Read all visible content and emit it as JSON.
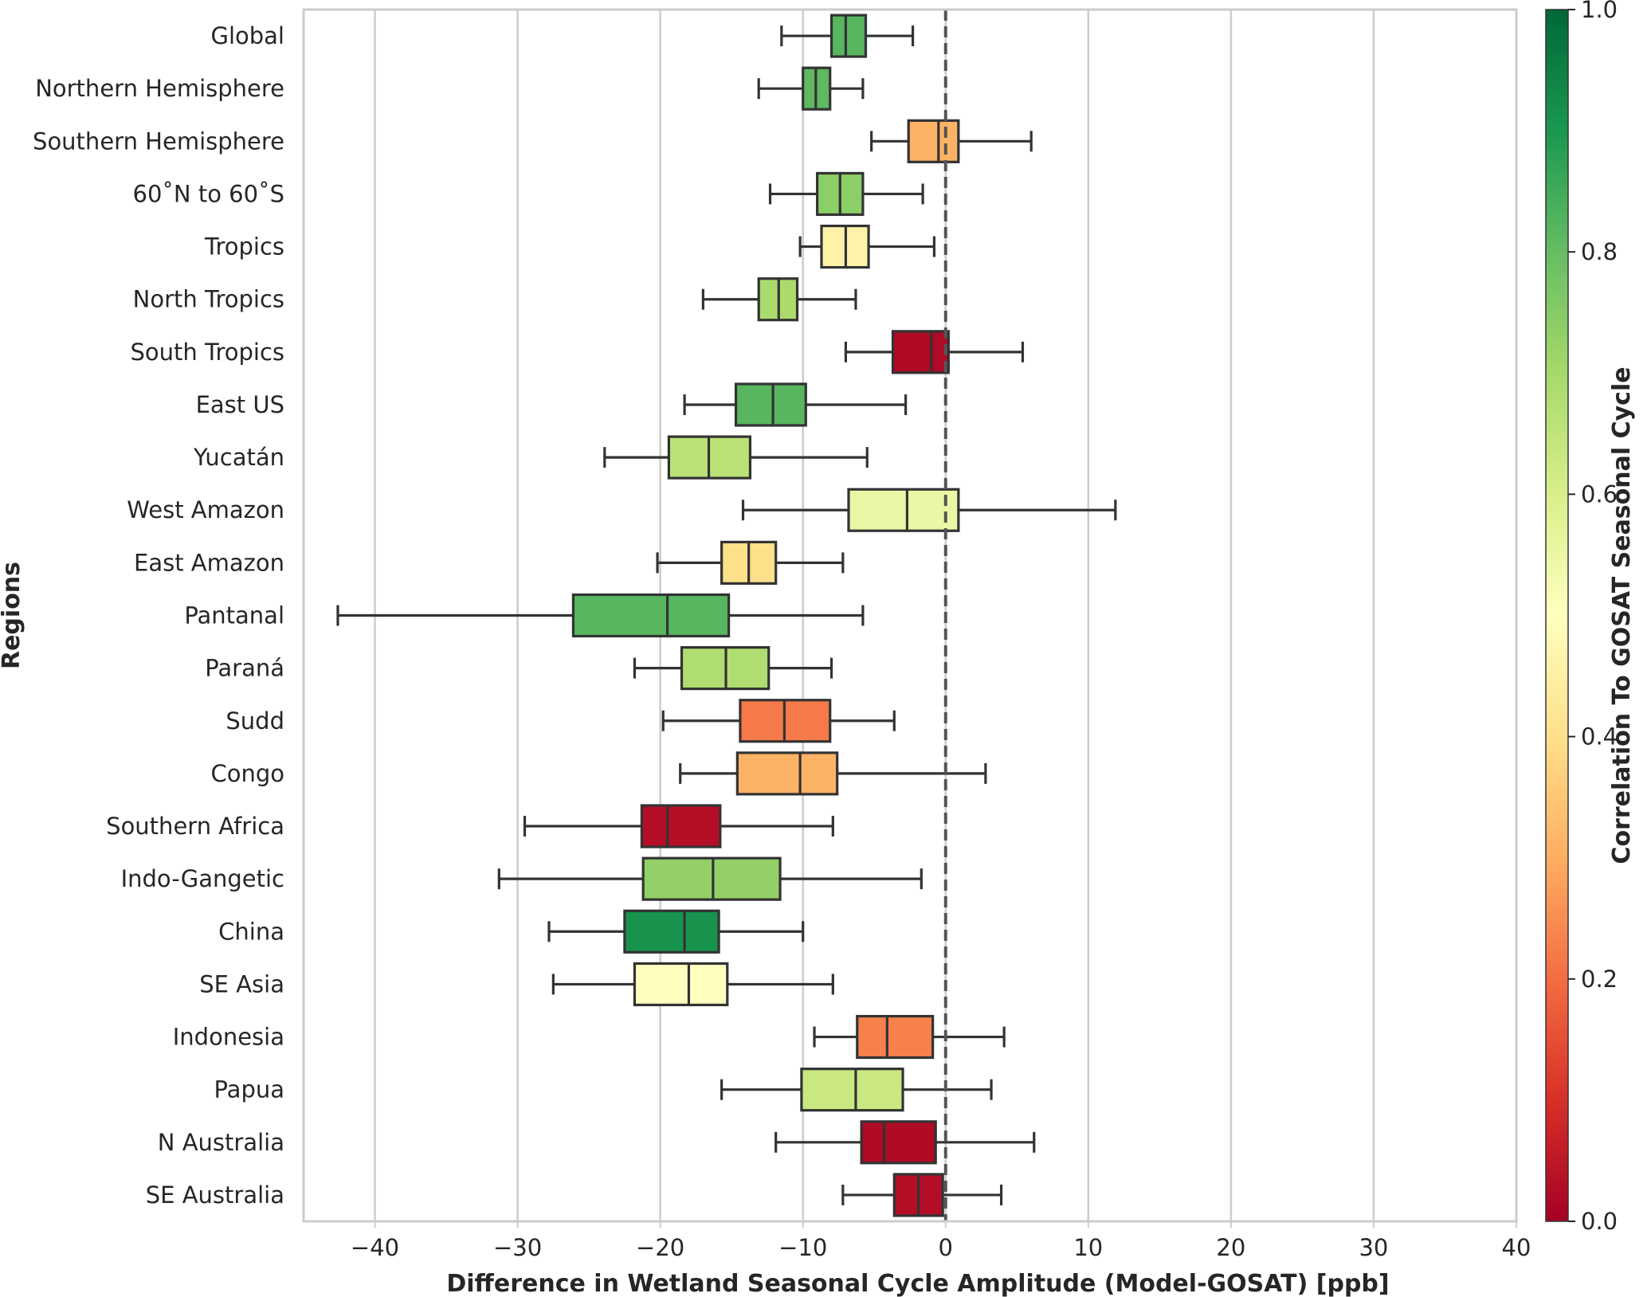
{
  "chart_data": {
    "type": "boxplot",
    "orientation": "horizontal",
    "xlabel": "Difference in Wetland Seasonal Cycle Amplitude (Model-GOSAT) [ppb]",
    "ylabel": "Regions",
    "xlim": [
      -45,
      40
    ],
    "xticks": [
      -40,
      -30,
      -20,
      -10,
      0,
      10,
      20,
      30,
      40
    ],
    "xtick_labels": [
      "−40",
      "−30",
      "−20",
      "−10",
      "0",
      "10",
      "20",
      "30",
      "40"
    ],
    "grid": "vertical gridlines at x ticks",
    "reference_line": 0,
    "colorbar": {
      "label": "Correlation To GOSAT Seasonal Cycle",
      "colormap": "RdYlGn",
      "range": [
        0.0,
        1.0
      ],
      "ticks": [
        0.0,
        0.2,
        0.4,
        0.6,
        0.8,
        1.0
      ],
      "tick_labels": [
        "0.0",
        "0.2",
        "0.4",
        "0.6",
        "0.8",
        "1.0"
      ],
      "placement": "right"
    },
    "series": [
      {
        "region": "Global",
        "whisker_low": -11.5,
        "q1": -8.0,
        "median": -7.0,
        "q3": -5.6,
        "whisker_high": -2.3,
        "correlation": 0.82
      },
      {
        "region": "Northern Hemisphere",
        "whisker_low": -13.1,
        "q1": -10.0,
        "median": -9.1,
        "q3": -8.1,
        "whisker_high": -5.8,
        "correlation": 0.81
      },
      {
        "region": "Southern Hemisphere",
        "whisker_low": -5.2,
        "q1": -2.6,
        "median": -0.5,
        "q3": 0.9,
        "whisker_high": 6.0,
        "correlation": 0.31
      },
      {
        "region": "60˚N to 60˚S",
        "whisker_low": -12.3,
        "q1": -9.0,
        "median": -7.4,
        "q3": -5.8,
        "whisker_high": -1.6,
        "correlation": 0.74
      },
      {
        "region": "Tropics",
        "whisker_low": -10.2,
        "q1": -8.7,
        "median": -7.0,
        "q3": -5.4,
        "whisker_high": -0.8,
        "correlation": 0.46
      },
      {
        "region": "North Tropics",
        "whisker_low": -17.0,
        "q1": -13.1,
        "median": -11.7,
        "q3": -10.4,
        "whisker_high": -6.3,
        "correlation": 0.69
      },
      {
        "region": "South Tropics",
        "whisker_low": -7.0,
        "q1": -3.7,
        "median": -1.0,
        "q3": 0.2,
        "whisker_high": 5.4,
        "correlation": 0.02
      },
      {
        "region": "East US",
        "whisker_low": -18.3,
        "q1": -14.7,
        "median": -12.1,
        "q3": -9.8,
        "whisker_high": -2.8,
        "correlation": 0.82
      },
      {
        "region": "Yucatán",
        "whisker_low": -23.9,
        "q1": -19.4,
        "median": -16.6,
        "q3": -13.7,
        "whisker_high": -5.5,
        "correlation": 0.66
      },
      {
        "region": "West Amazon",
        "whisker_low": -14.2,
        "q1": -6.8,
        "median": -2.7,
        "q3": 0.9,
        "whisker_high": 11.9,
        "correlation": 0.55
      },
      {
        "region": "East Amazon",
        "whisker_low": -20.2,
        "q1": -15.7,
        "median": -13.8,
        "q3": -11.9,
        "whisker_high": -7.2,
        "correlation": 0.4
      },
      {
        "region": "Pantanal",
        "whisker_low": -42.6,
        "q1": -26.1,
        "median": -19.5,
        "q3": -15.2,
        "whisker_high": -5.8,
        "correlation": 0.82
      },
      {
        "region": "Paraná",
        "whisker_low": -21.8,
        "q1": -18.5,
        "median": -15.4,
        "q3": -12.4,
        "whisker_high": -8.0,
        "correlation": 0.68
      },
      {
        "region": "Sudd",
        "whisker_low": -19.8,
        "q1": -14.4,
        "median": -11.3,
        "q3": -8.1,
        "whisker_high": -3.6,
        "correlation": 0.22
      },
      {
        "region": "Congo",
        "whisker_low": -18.6,
        "q1": -14.6,
        "median": -10.2,
        "q3": -7.6,
        "whisker_high": 2.8,
        "correlation": 0.31
      },
      {
        "region": "Southern Africa",
        "whisker_low": -29.5,
        "q1": -21.3,
        "median": -19.5,
        "q3": -15.8,
        "whisker_high": -7.9,
        "correlation": 0.03
      },
      {
        "region": "Indo-Gangetic",
        "whisker_low": -31.3,
        "q1": -21.2,
        "median": -16.3,
        "q3": -11.6,
        "whisker_high": -1.7,
        "correlation": 0.73
      },
      {
        "region": "China",
        "whisker_low": -27.8,
        "q1": -22.5,
        "median": -18.3,
        "q3": -15.9,
        "whisker_high": -10.0,
        "correlation": 0.91
      },
      {
        "region": "SE Asia",
        "whisker_low": -27.5,
        "q1": -21.8,
        "median": -18.0,
        "q3": -15.3,
        "whisker_high": -7.9,
        "correlation": 0.5
      },
      {
        "region": "Indonesia",
        "whisker_low": -9.2,
        "q1": -6.2,
        "median": -4.1,
        "q3": -0.9,
        "whisker_high": 4.1,
        "correlation": 0.23
      },
      {
        "region": "Papua",
        "whisker_low": -15.7,
        "q1": -10.1,
        "median": -6.3,
        "q3": -3.0,
        "whisker_high": 3.2,
        "correlation": 0.63
      },
      {
        "region": "N Australia",
        "whisker_low": -11.9,
        "q1": -5.9,
        "median": -4.3,
        "q3": -0.7,
        "whisker_high": 6.2,
        "correlation": 0.02
      },
      {
        "region": "SE Australia",
        "whisker_low": -7.2,
        "q1": -3.6,
        "median": -1.9,
        "q3": -0.2,
        "whisker_high": 3.9,
        "correlation": 0.03
      }
    ]
  }
}
